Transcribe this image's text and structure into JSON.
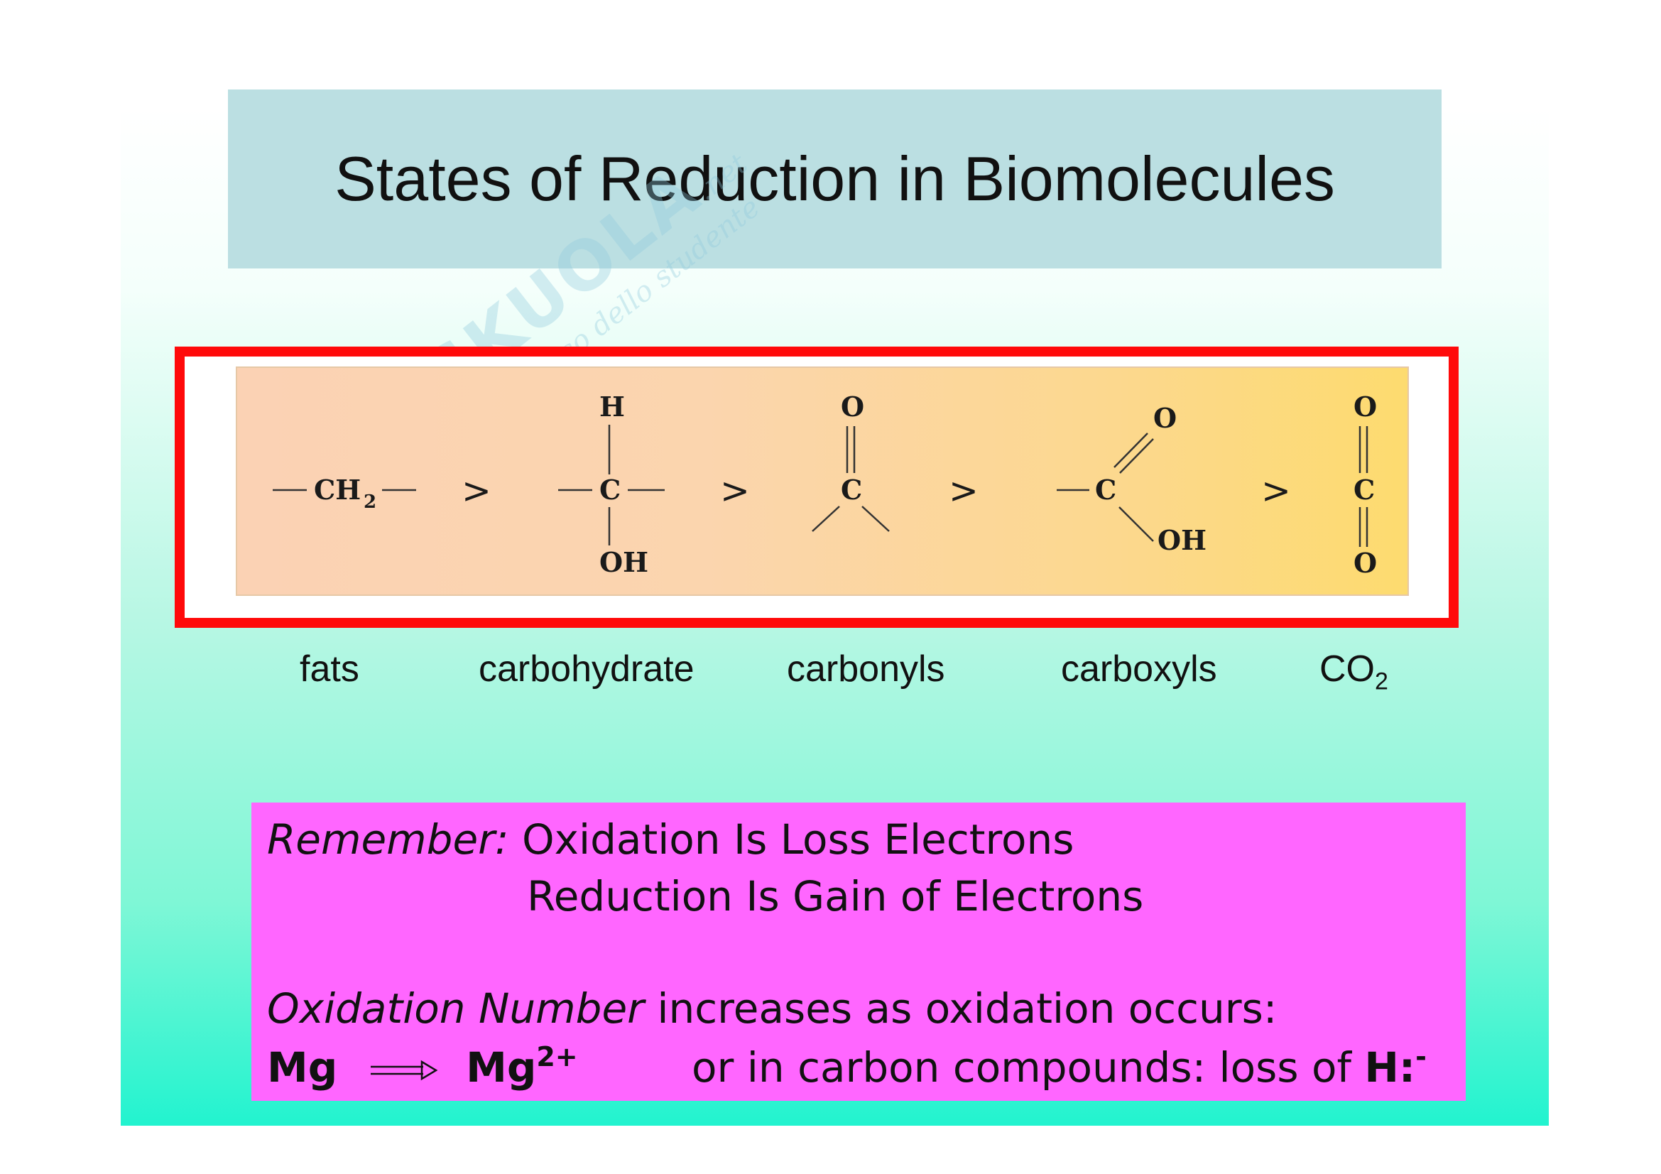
{
  "slide": {
    "title": "States of Reduction in Biomolecules"
  },
  "watermark": {
    "brand": "SKUOLA",
    "domain": ".net",
    "tagline": "il paradiso dello studente"
  },
  "structures": {
    "ch2": "CH",
    "ch2_sub": "2",
    "carbon": "C",
    "hydrogen": "H",
    "oxygen": "O",
    "hydroxyl": "OH",
    "greater_than": ">"
  },
  "labels": {
    "fats": "fats",
    "carbohydrate": "carbohydrate",
    "carbonyls": "carbonyls",
    "carboxyls": "carboxyls",
    "co2_main": "CO",
    "co2_sub": "2"
  },
  "memo": {
    "remember_label": "Remember:",
    "oil": "Oxidation Is Loss Electrons",
    "rig": "Reduction Is Gain of Electrons",
    "ox_number_label": "Oxidation Number",
    "ox_number_text": "increases as oxidation occurs:",
    "mg": "Mg",
    "mg_ion": "Mg",
    "mg_charge": "2+",
    "carbon_text": "or in carbon compounds: loss of",
    "hydride": "H:",
    "hydride_charge": "-"
  }
}
